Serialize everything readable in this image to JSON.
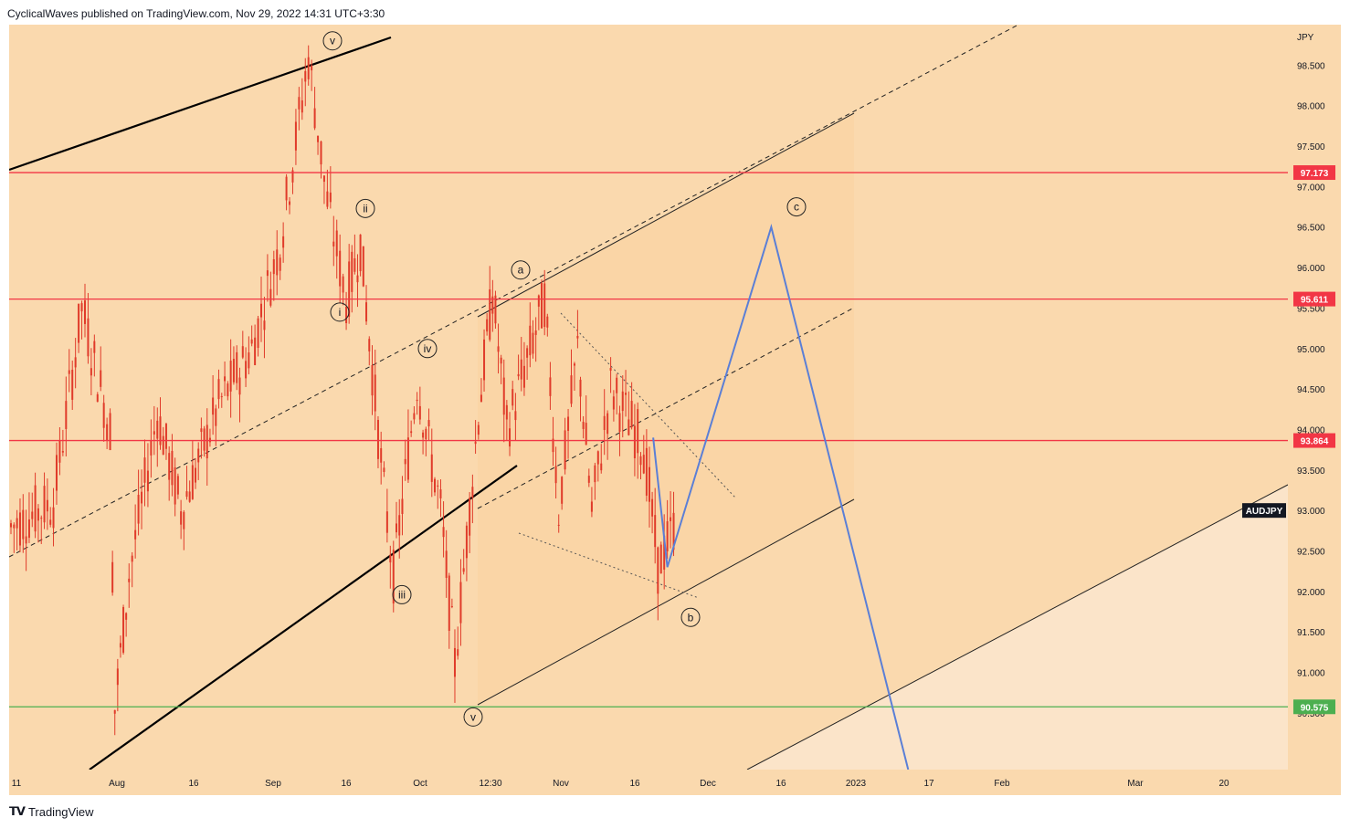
{
  "header": {
    "text": "CyclicalWaves published on TradingView.com, Nov 29, 2022 14:31 UTC+3:30"
  },
  "footer": {
    "brand": "TradingView"
  },
  "colors": {
    "background": "#fad9ae",
    "hline_red": "#f23645",
    "hline_green": "#4caf50",
    "projection": "#5b7fd6",
    "candle": "#e03b2a",
    "badge_text": "#ffffff",
    "symbol_badge": "#131722"
  },
  "chart_data": {
    "type": "candlestick",
    "symbol": "AUDJPY",
    "currency": "JPY",
    "ylim": [
      89.8,
      99.0
    ],
    "y_ticks": [
      "98.500",
      "98.000",
      "97.500",
      "97.000",
      "96.500",
      "96.000",
      "95.500",
      "95.000",
      "94.500",
      "94.000",
      "93.500",
      "93.000",
      "92.500",
      "92.000",
      "91.500",
      "91.000",
      "90.500"
    ],
    "x_ticks": [
      "11",
      "Aug",
      "16",
      "Sep",
      "16",
      "Oct",
      "12:30",
      "Nov",
      "16",
      "Dec",
      "16",
      "2023",
      "17",
      "Feb",
      "Mar",
      "20"
    ],
    "horizontal_levels": [
      {
        "value": 97.173,
        "label": "97.173",
        "color": "red"
      },
      {
        "value": 95.611,
        "label": "95.611",
        "color": "red"
      },
      {
        "value": 93.864,
        "label": "93.864",
        "color": "red"
      },
      {
        "value": 90.575,
        "label": "90.575",
        "color": "green"
      }
    ],
    "wave_labels": [
      {
        "text": "v",
        "price": 98.8
      },
      {
        "text": "ii",
        "price": 96.73
      },
      {
        "text": "i",
        "price": 95.45
      },
      {
        "text": "iv",
        "price": 95.0
      },
      {
        "text": "iii",
        "price": 91.96
      },
      {
        "text": "v",
        "price": 90.45
      },
      {
        "text": "a",
        "price": 95.97
      },
      {
        "text": "b",
        "price": 91.68
      },
      {
        "text": "c",
        "price": 96.75
      }
    ],
    "price_path": [
      {
        "date": "Jul 11",
        "close": 92.8
      },
      {
        "date": "Jul 20",
        "close": 93.1
      },
      {
        "date": "Jul 26",
        "close": 95.5
      },
      {
        "date": "Aug 1",
        "close": 94.0
      },
      {
        "date": "Aug 2",
        "close": 90.55
      },
      {
        "date": "Aug 5",
        "close": 92.2
      },
      {
        "date": "Aug 11",
        "close": 94.2
      },
      {
        "date": "Aug 16",
        "close": 93.0
      },
      {
        "date": "Aug 24",
        "close": 94.3
      },
      {
        "date": "Aug 31",
        "close": 95.0
      },
      {
        "date": "Sep 6",
        "close": 96.3
      },
      {
        "date": "Sep 12",
        "close": 98.6
      },
      {
        "date": "Sep 16",
        "close": 96.8
      },
      {
        "date": "Sep 20",
        "close": 95.6
      },
      {
        "date": "Sep 23",
        "close": 96.3
      },
      {
        "date": "Sep 28",
        "close": 93.2
      },
      {
        "date": "Sep 30",
        "close": 92.2
      },
      {
        "date": "Oct 5",
        "close": 94.6
      },
      {
        "date": "Oct 10",
        "close": 93.0
      },
      {
        "date": "Oct 13",
        "close": 91.1
      },
      {
        "date": "Oct 18",
        "close": 94.2
      },
      {
        "date": "Oct 21",
        "close": 95.7
      },
      {
        "date": "Oct 24",
        "close": 94.0
      },
      {
        "date": "Nov 1",
        "close": 95.6
      },
      {
        "date": "Nov 4",
        "close": 93.0
      },
      {
        "date": "Nov 8",
        "close": 95.0
      },
      {
        "date": "Nov 11",
        "close": 93.0
      },
      {
        "date": "Nov 15",
        "close": 94.5
      },
      {
        "date": "Nov 22",
        "close": 93.8
      },
      {
        "date": "Nov 25",
        "close": 92.3
      },
      {
        "date": "Nov 29",
        "close": 92.9
      }
    ],
    "projection_path": [
      {
        "date": "Nov 24",
        "price": 93.9
      },
      {
        "date": "Nov 27",
        "price": 92.3
      },
      {
        "date": "Dec 19",
        "price": 96.5
      },
      {
        "date": "Jan 17",
        "price": 89.8
      }
    ]
  }
}
